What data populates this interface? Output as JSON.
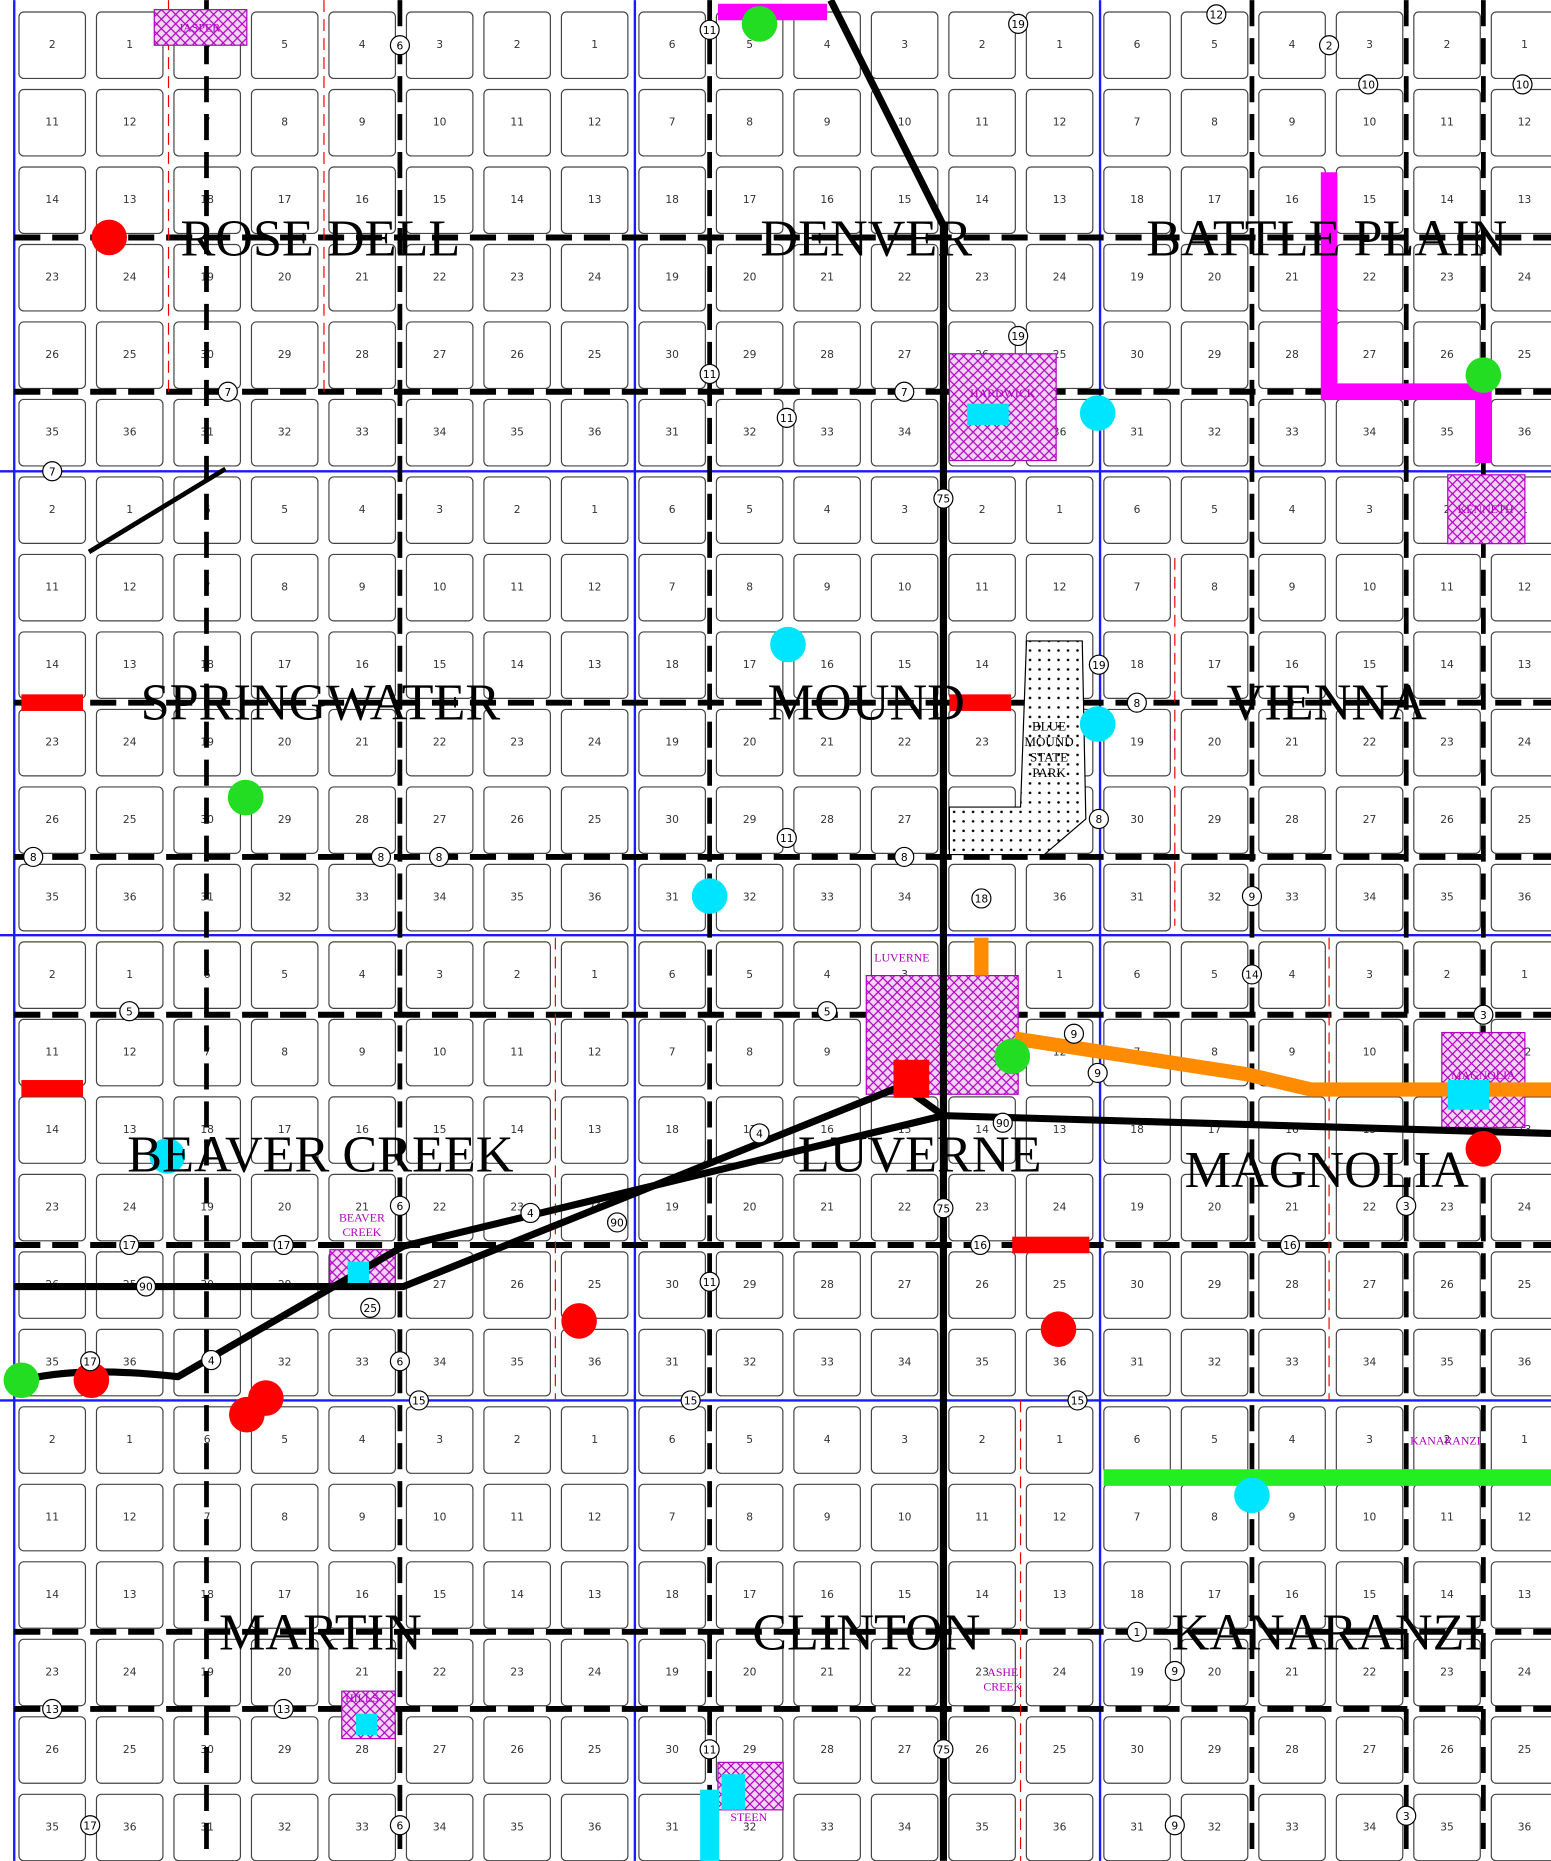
{
  "map": {
    "townships": [
      "ROSE DELL",
      "DENVER",
      "BATTLE PLAIN",
      "SPRINGWATER",
      "MOUND",
      "VIENNA",
      "BEAVER CREEK",
      "LUVERNE",
      "MAGNOLIA",
      "MARTIN",
      "CLINTON",
      "KANARANZI"
    ],
    "towns": [
      {
        "lines": [
          "JASPER"
        ]
      },
      {
        "lines": [
          "HARDWICK"
        ]
      },
      {
        "lines": [
          "KENNETH"
        ]
      },
      {
        "lines": [
          "LUVERNE"
        ]
      },
      {
        "lines": [
          "MAGNOLIA"
        ]
      },
      {
        "lines": [
          "BEAVER",
          "CREEK"
        ]
      },
      {
        "lines": [
          "KANARANZI"
        ]
      },
      {
        "lines": [
          "ASHE",
          "CREEK"
        ]
      },
      {
        "lines": [
          "HILLS"
        ]
      },
      {
        "lines": [
          "STEEN"
        ]
      }
    ],
    "park": [
      "BLUE",
      "MOUND",
      "STATE",
      "PARK"
    ],
    "section_rows": [
      [
        2,
        1,
        6,
        5,
        4,
        3,
        2,
        1,
        6,
        5,
        4,
        3,
        2,
        1,
        6,
        5,
        4,
        3,
        2,
        1
      ],
      [
        11,
        12,
        7,
        8,
        9,
        10,
        11,
        12,
        7,
        8,
        9,
        10,
        11,
        12,
        7,
        8,
        9,
        10,
        11,
        12
      ],
      [
        14,
        13,
        18,
        17,
        16,
        15,
        14,
        13,
        18,
        17,
        16,
        15,
        14,
        13,
        18,
        17,
        16,
        15,
        14,
        13
      ],
      [
        23,
        24,
        19,
        20,
        21,
        22,
        23,
        24,
        19,
        20,
        21,
        22,
        23,
        24,
        19,
        20,
        21,
        22,
        23,
        24
      ],
      [
        26,
        25,
        30,
        29,
        28,
        27,
        26,
        25,
        30,
        29,
        28,
        27,
        26,
        25,
        30,
        29,
        28,
        27,
        26,
        25
      ],
      [
        35,
        36,
        31,
        32,
        33,
        34,
        35,
        36,
        31,
        32,
        33,
        34,
        35,
        36,
        31,
        32,
        33,
        34,
        35,
        36
      ]
    ],
    "route_markers": [
      "75",
      "75",
      "75",
      "90",
      "90",
      "90",
      "4",
      "4",
      "4",
      "9",
      "9",
      "9",
      "9",
      "9",
      "8",
      "8",
      "8",
      "8",
      "8",
      "8",
      "11",
      "11",
      "11",
      "11",
      "11",
      "11",
      "7",
      "7",
      "7",
      "15",
      "15",
      "15",
      "16",
      "16",
      "6",
      "6",
      "6",
      "6",
      "5",
      "5",
      "17",
      "17",
      "17",
      "17",
      "13",
      "13",
      "3",
      "3",
      "3",
      "1",
      "19",
      "19",
      "19",
      "12",
      "10",
      "10",
      "25",
      "18",
      "14",
      "2"
    ]
  }
}
